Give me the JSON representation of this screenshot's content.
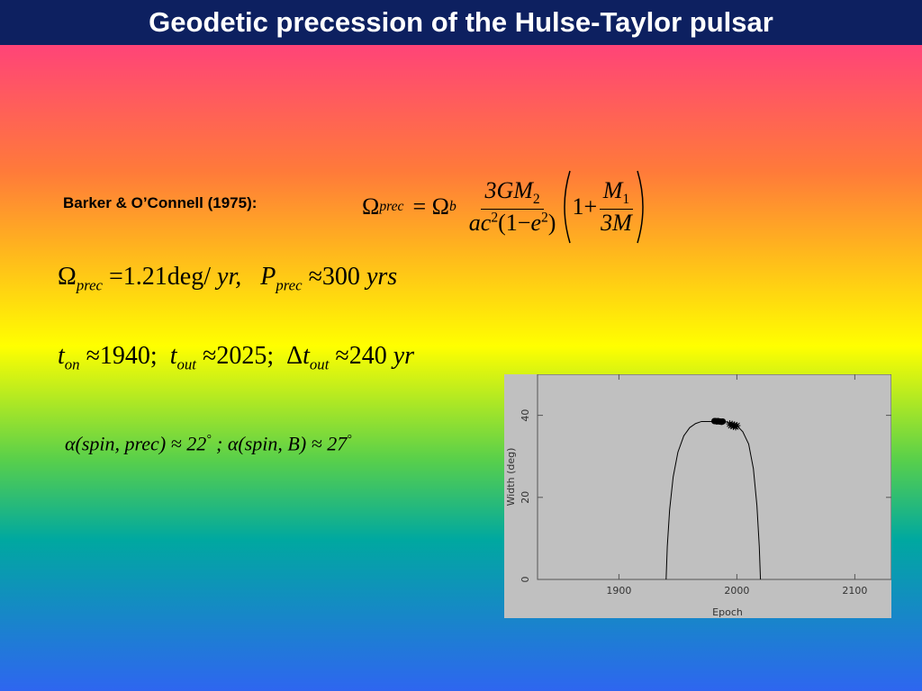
{
  "title": "Geodetic precession of the Hulse-Taylor pulsar",
  "citation": "Barker & O’Connell (1975):",
  "formula_1": {
    "lhs": "Ω",
    "lhs_sub": "prec",
    "eq": "= Ω",
    "eq_sub": "b",
    "num": "3GM",
    "num_sub": "2",
    "den_a": "ac",
    "den_sup1": "2",
    "den_b": "(1−",
    "den_e": "e",
    "den_sup2": "2",
    "den_c": ")",
    "one_plus": "1+",
    "inner_num": "M",
    "inner_num_sub": "1",
    "inner_den": "3M"
  },
  "formula_2": {
    "a": "Ω",
    "a_sub": "prec",
    "b": "=1.21deg/",
    "c": "yr,",
    "d": "P",
    "d_sub": "prec",
    "e": "≈300",
    "f": "yrs"
  },
  "formula_3": {
    "a": "t",
    "a_sub": "on",
    "b": "≈1940;",
    "c": "t",
    "c_sub": "out",
    "d": "≈2025;",
    "e": "Δ",
    "f": "t",
    "f_sub": "out",
    "g": "≈240",
    "h": "yr"
  },
  "formula_4": {
    "a": "α(spin, prec) ≈ 22",
    "a_sup": "°",
    "b": "; α(spin, B) ≈ 27",
    "b_sup": "°"
  },
  "chart_data": {
    "type": "line",
    "xlabel": "Epoch",
    "ylabel": "Width (deg)",
    "xlim": [
      1831,
      2131
    ],
    "ylim": [
      0,
      50
    ],
    "xticks": [
      1900,
      2000,
      2100
    ],
    "yticks": [
      0,
      20,
      40
    ],
    "series": [
      {
        "color": "#000000",
        "marker": "line",
        "x": [
          1940,
          1941,
          1943,
          1946,
          1950,
          1955,
          1960,
          1965,
          1970,
          1980,
          1990,
          2000,
          2005,
          2010,
          2014,
          2017,
          2019,
          2020
        ],
        "values": [
          0,
          8,
          17,
          25,
          31,
          35,
          37,
          38,
          38.5,
          38.5,
          38.5,
          37.5,
          36,
          33,
          27,
          18,
          8,
          0
        ]
      },
      {
        "color": "#000000",
        "marker": "dot",
        "x": [
          1981,
          1982,
          1983,
          1984,
          1985,
          1986,
          1987,
          1988
        ],
        "values": [
          38.6,
          38.6,
          38.5,
          38.6,
          38.5,
          38.5,
          38.4,
          38.5
        ]
      },
      {
        "color": "#000000",
        "marker": "star",
        "x": [
          1994,
          1995,
          1996,
          1997,
          1998,
          1999,
          2000
        ],
        "values": [
          37.9,
          37.5,
          37.8,
          37.3,
          37.6,
          37.2,
          37.5
        ]
      }
    ]
  }
}
